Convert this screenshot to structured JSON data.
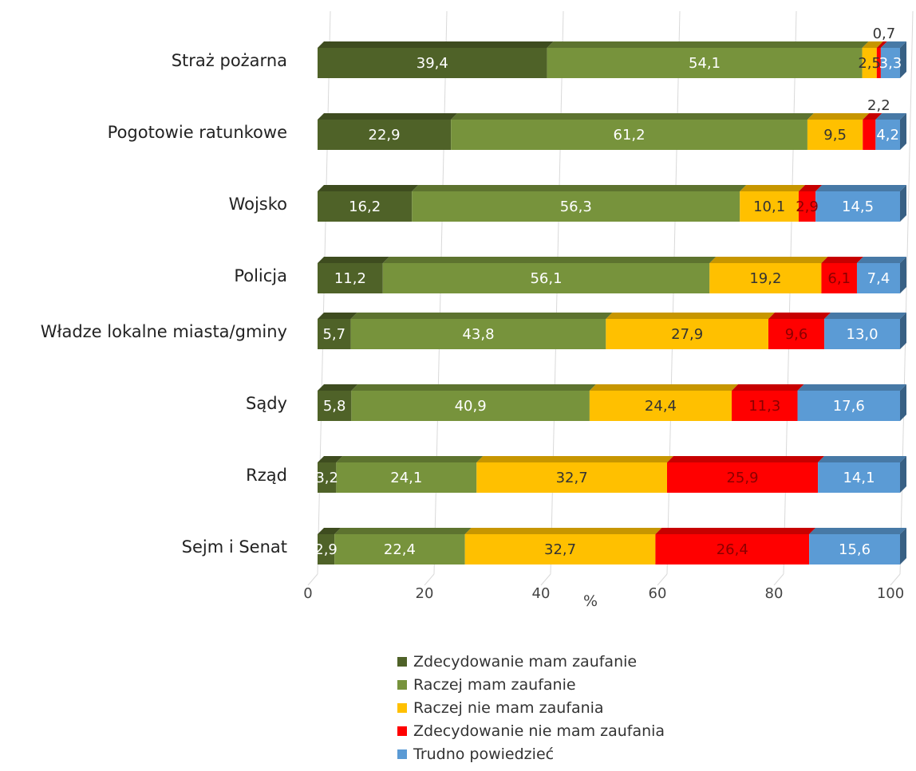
{
  "chart_data": {
    "type": "bar",
    "orientation": "horizontal",
    "stacked": true,
    "categories": [
      "Straż pożarna",
      "Pogotowie ratunkowe",
      "Wojsko",
      "Policja",
      "Władze lokalne miasta/gminy",
      "Sądy",
      "Rząd",
      "Sejm i Senat"
    ],
    "series": [
      {
        "name": "Zdecydowanie mam zaufanie",
        "color": "#4f6228",
        "values": [
          39.4,
          22.9,
          16.2,
          11.2,
          5.7,
          5.8,
          3.2,
          2.9
        ],
        "labels": [
          "39,4",
          "22,9",
          "16,2",
          "11,2",
          "5,7",
          "5,8",
          "3,2",
          "2,9"
        ]
      },
      {
        "name": "Raczej mam zaufanie",
        "color": "#77933c",
        "values": [
          54.1,
          61.2,
          56.3,
          56.1,
          43.8,
          40.9,
          24.1,
          22.4
        ],
        "labels": [
          "54,1",
          "61,2",
          "56,3",
          "56,1",
          "43,8",
          "40,9",
          "24,1",
          "22,4"
        ]
      },
      {
        "name": "Raczej nie mam zaufania",
        "color": "#ffc000",
        "values": [
          2.5,
          9.5,
          10.1,
          19.2,
          27.9,
          24.4,
          32.7,
          32.7
        ],
        "labels": [
          "2,5",
          "9,5",
          "10,1",
          "19,2",
          "27,9",
          "24,4",
          "32,7",
          "32,7"
        ]
      },
      {
        "name": "Zdecydowanie nie mam zaufania",
        "color": "#ff0000",
        "values": [
          0.7,
          2.2,
          2.9,
          6.1,
          9.6,
          11.3,
          25.9,
          26.4
        ],
        "labels": [
          "0,7",
          "2,2",
          "2,9",
          "6,1",
          "9,6",
          "11,3",
          "25,9",
          "26,4"
        ]
      },
      {
        "name": "Trudno powiedzieć",
        "color": "#5b9bd5",
        "values": [
          3.3,
          4.2,
          14.5,
          7.4,
          13.0,
          17.6,
          14.1,
          15.6
        ],
        "labels": [
          "3,3",
          "4,2",
          "14,5",
          "7,4",
          "13,0",
          "17,6",
          "14,1",
          "15,6"
        ]
      }
    ],
    "xlabel": "%",
    "ylabel": "",
    "xlim": [
      0,
      100
    ],
    "xticks": [
      "0",
      "20",
      "40",
      "60",
      "80",
      "100"
    ],
    "grid": true,
    "legend_position": "bottom"
  }
}
